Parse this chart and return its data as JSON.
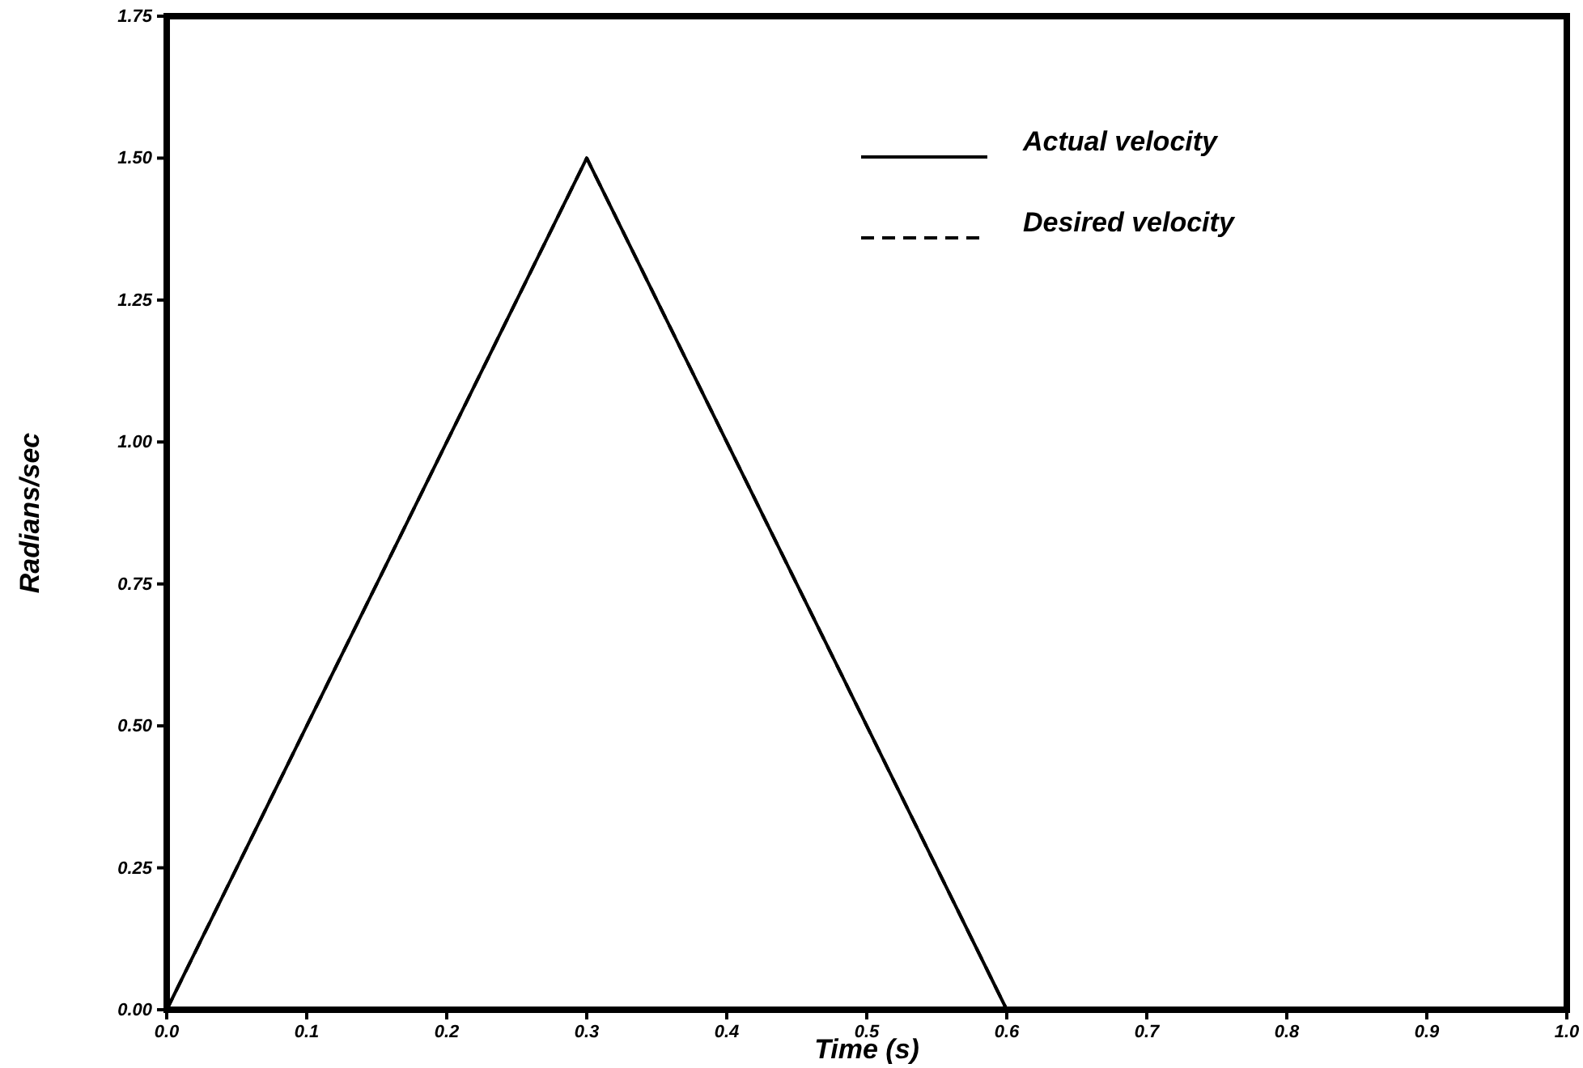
{
  "chart_data": {
    "type": "line",
    "xlabel": "Time (s)",
    "ylabel": "Radians/sec",
    "x": [
      0,
      0.3,
      0.6,
      1.0
    ],
    "series": [
      {
        "name": "Actual velocity",
        "color": "#000000",
        "line_style": "solid",
        "values": [
          0,
          1.5,
          0,
          0
        ]
      },
      {
        "name": "Desired velocity",
        "color": "#000000",
        "line_style": "dashed",
        "values": [
          0,
          1.5,
          0,
          0
        ]
      }
    ],
    "xlim": [
      0,
      1
    ],
    "ylim": [
      0,
      1.75
    ],
    "xticks": [
      {
        "value": 0,
        "label": "0.0"
      },
      {
        "value": 0.1,
        "label": "0.1"
      },
      {
        "value": 0.2,
        "label": "0.2"
      },
      {
        "value": 0.3,
        "label": "0.3"
      },
      {
        "value": 0.4,
        "label": "0.4"
      },
      {
        "value": 0.5,
        "label": "0.5"
      },
      {
        "value": 0.6,
        "label": "0.6"
      },
      {
        "value": 0.7,
        "label": "0.7"
      },
      {
        "value": 0.8,
        "label": "0.8"
      },
      {
        "value": 0.9,
        "label": "0.9"
      },
      {
        "value": 1,
        "label": "1.0"
      }
    ],
    "yticks": [
      {
        "value": 0,
        "label": "0.00"
      },
      {
        "value": 0.25,
        "label": "0.25"
      },
      {
        "value": 0.5,
        "label": "0.50"
      },
      {
        "value": 0.75,
        "label": "0.75"
      },
      {
        "value": 1,
        "label": "1.00"
      },
      {
        "value": 1.25,
        "label": "1.25"
      },
      {
        "value": 1.5,
        "label": "1.50"
      },
      {
        "value": 1.75,
        "label": "1.75"
      }
    ],
    "grid": false,
    "legend": "top right",
    "marker": "none"
  }
}
